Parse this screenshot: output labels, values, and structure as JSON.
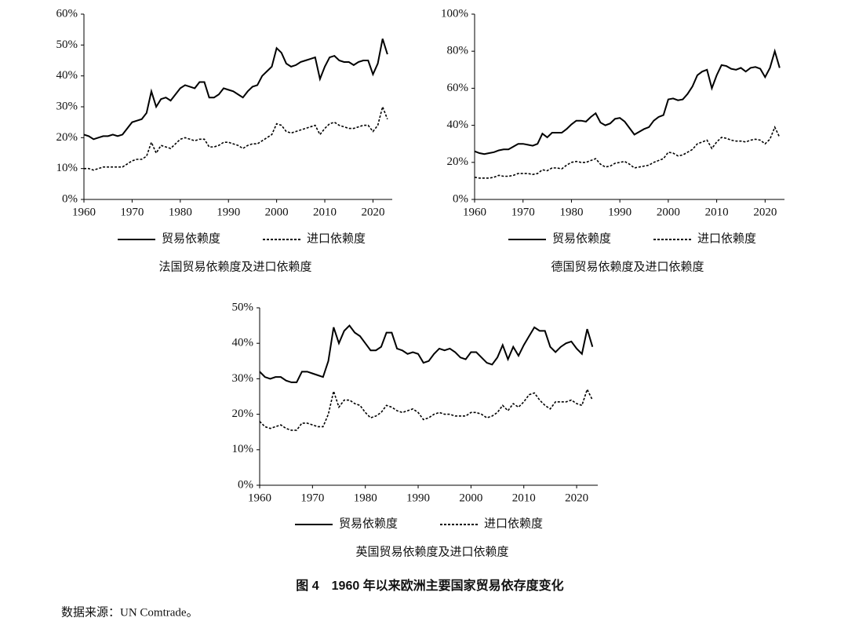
{
  "chart_data": [
    {
      "type": "line",
      "title": "法国贸易依赖度及进口依赖度",
      "x": [
        1960,
        1961,
        1962,
        1963,
        1964,
        1965,
        1966,
        1967,
        1968,
        1969,
        1970,
        1971,
        1972,
        1973,
        1974,
        1975,
        1976,
        1977,
        1978,
        1979,
        1980,
        1981,
        1982,
        1983,
        1984,
        1985,
        1986,
        1987,
        1988,
        1989,
        1990,
        1991,
        1992,
        1993,
        1994,
        1995,
        1996,
        1997,
        1998,
        1999,
        2000,
        2001,
        2002,
        2003,
        2004,
        2005,
        2006,
        2007,
        2008,
        2009,
        2010,
        2011,
        2012,
        2013,
        2014,
        2015,
        2016,
        2017,
        2018,
        2019,
        2020,
        2021,
        2022,
        2023
      ],
      "series": [
        {
          "name": "贸易依赖度",
          "color": "#000000",
          "line_style": "solid",
          "values": [
            21,
            20.5,
            19.5,
            20,
            20.5,
            20.5,
            21,
            20.5,
            21,
            23,
            25,
            25.5,
            26,
            28,
            35,
            30,
            32.5,
            33,
            32,
            34,
            36,
            37,
            36.5,
            36,
            38,
            38,
            33,
            33,
            34,
            36,
            35.5,
            35,
            34,
            33,
            35,
            36.5,
            37,
            40,
            41.5,
            43,
            49,
            47.5,
            44,
            43,
            43.5,
            44.5,
            45,
            45.5,
            46,
            39,
            43,
            46,
            46.5,
            45,
            44.5,
            44.5,
            43.5,
            44.5,
            45,
            45,
            40.5,
            44,
            52,
            47
          ]
        },
        {
          "name": "进口依赖度",
          "color": "#000000",
          "line_style": "dashed",
          "values": [
            10,
            10,
            9.5,
            10,
            10.5,
            10.5,
            10.5,
            10.5,
            10.5,
            11.5,
            12.5,
            13,
            13,
            14,
            18.5,
            15,
            17.5,
            17,
            16.5,
            18,
            19.5,
            20,
            19.5,
            19,
            19.5,
            19.5,
            17,
            17,
            17.5,
            18.5,
            18.5,
            18,
            17.5,
            16.5,
            17.5,
            18,
            18,
            19,
            20,
            21,
            24.5,
            24,
            22,
            21.5,
            22,
            22.5,
            23,
            23.5,
            24,
            21,
            23,
            24.5,
            25,
            24,
            23.5,
            23,
            23,
            23.5,
            24,
            24,
            22,
            24,
            30,
            26
          ]
        }
      ],
      "xlim": [
        1960,
        2024
      ],
      "xticks": [
        1960,
        1970,
        1980,
        1990,
        2000,
        2010,
        2020
      ],
      "ylim": [
        0,
        60
      ],
      "yticks": [
        {
          "value": 0,
          "label": "0%"
        },
        {
          "value": 10,
          "label": "10%"
        },
        {
          "value": 20,
          "label": "20%"
        },
        {
          "value": 30,
          "label": "30%"
        },
        {
          "value": 40,
          "label": "40%"
        },
        {
          "value": 50,
          "label": "50%"
        },
        {
          "value": 60,
          "label": "60%"
        }
      ],
      "grid": false
    },
    {
      "type": "line",
      "title": "德国贸易依赖度及进口依赖度",
      "x": [
        1960,
        1961,
        1962,
        1963,
        1964,
        1965,
        1966,
        1967,
        1968,
        1969,
        1970,
        1971,
        1972,
        1973,
        1974,
        1975,
        1976,
        1977,
        1978,
        1979,
        1980,
        1981,
        1982,
        1983,
        1984,
        1985,
        1986,
        1987,
        1988,
        1989,
        1990,
        1991,
        1992,
        1993,
        1994,
        1995,
        1996,
        1997,
        1998,
        1999,
        2000,
        2001,
        2002,
        2003,
        2004,
        2005,
        2006,
        2007,
        2008,
        2009,
        2010,
        2011,
        2012,
        2013,
        2014,
        2015,
        2016,
        2017,
        2018,
        2019,
        2020,
        2021,
        2022,
        2023
      ],
      "series": [
        {
          "name": "贸易依赖度",
          "color": "#000000",
          "line_style": "solid",
          "values": [
            26,
            25,
            24.5,
            25,
            25.5,
            26.5,
            27,
            27,
            28.5,
            30,
            30,
            29.5,
            29,
            30,
            35.5,
            33.5,
            36,
            36,
            36,
            38,
            40.5,
            42.5,
            42.5,
            42,
            44.5,
            46.5,
            41.5,
            40,
            41,
            43.5,
            44,
            42,
            38.5,
            35,
            36.5,
            38,
            39,
            42.5,
            44.5,
            45.5,
            54,
            54.5,
            53.5,
            54,
            57,
            61,
            67,
            69,
            70,
            60,
            67,
            72.5,
            72,
            70.5,
            70,
            71,
            69,
            71,
            71.5,
            70.5,
            66,
            71,
            80,
            71
          ]
        },
        {
          "name": "进口依赖度",
          "color": "#000000",
          "line_style": "dashed",
          "values": [
            12,
            11.5,
            11.5,
            11.5,
            12,
            13,
            12.5,
            12.5,
            13,
            14,
            14,
            14,
            13.5,
            14,
            16,
            15.5,
            17,
            17,
            16.5,
            18.5,
            20,
            20.5,
            20,
            20,
            21,
            22,
            19,
            17.5,
            18,
            19.5,
            20,
            20.5,
            19,
            17,
            17.5,
            18,
            18.5,
            20,
            21,
            22,
            25.5,
            25,
            23.5,
            24,
            25.5,
            27,
            30,
            31,
            32,
            27.5,
            31,
            33.5,
            33,
            32,
            31.5,
            31.5,
            31,
            32,
            32.5,
            32,
            30,
            32.5,
            39,
            33.5
          ]
        }
      ],
      "xlim": [
        1960,
        2024
      ],
      "xticks": [
        1960,
        1970,
        1980,
        1990,
        2000,
        2010,
        2020
      ],
      "ylim": [
        0,
        100
      ],
      "yticks": [
        {
          "value": 0,
          "label": "0%"
        },
        {
          "value": 20,
          "label": "20%"
        },
        {
          "value": 40,
          "label": "40%"
        },
        {
          "value": 60,
          "label": "60%"
        },
        {
          "value": 80,
          "label": "80%"
        },
        {
          "value": 100,
          "label": "100%"
        }
      ],
      "grid": false
    },
    {
      "type": "line",
      "title": "英国贸易依赖度及进口依赖度",
      "x": [
        1960,
        1961,
        1962,
        1963,
        1964,
        1965,
        1966,
        1967,
        1968,
        1969,
        1970,
        1971,
        1972,
        1973,
        1974,
        1975,
        1976,
        1977,
        1978,
        1979,
        1980,
        1981,
        1982,
        1983,
        1984,
        1985,
        1986,
        1987,
        1988,
        1989,
        1990,
        1991,
        1992,
        1993,
        1994,
        1995,
        1996,
        1997,
        1998,
        1999,
        2000,
        2001,
        2002,
        2003,
        2004,
        2005,
        2006,
        2007,
        2008,
        2009,
        2010,
        2011,
        2012,
        2013,
        2014,
        2015,
        2016,
        2017,
        2018,
        2019,
        2020,
        2021,
        2022,
        2023
      ],
      "series": [
        {
          "name": "贸易依赖度",
          "color": "#000000",
          "line_style": "solid",
          "values": [
            32,
            30.5,
            30,
            30.5,
            30.5,
            29.5,
            29,
            29,
            32,
            32,
            31.5,
            31,
            30.5,
            35,
            44.5,
            40,
            43.5,
            45,
            43,
            42,
            40,
            38,
            38,
            39,
            43,
            43,
            38.5,
            38,
            37,
            37.5,
            37,
            34.5,
            35,
            37,
            38.5,
            38,
            38.5,
            37.5,
            36,
            35.5,
            37.5,
            37.5,
            36,
            34.5,
            34,
            36,
            39.5,
            35.5,
            39,
            36.5,
            39.5,
            42,
            44.5,
            43.5,
            43.5,
            39,
            37.5,
            39,
            40,
            40.5,
            38.5,
            37,
            44,
            39
          ]
        },
        {
          "name": "进口依赖度",
          "color": "#000000",
          "line_style": "dashed",
          "values": [
            18,
            16.5,
            16,
            16.5,
            17,
            16,
            15.5,
            15.5,
            17.5,
            17.5,
            17,
            16.5,
            16.5,
            20,
            26.5,
            22,
            24,
            24,
            23,
            22.5,
            20.5,
            19,
            19.5,
            20.5,
            22.5,
            22,
            21,
            20.5,
            21,
            21.5,
            20.5,
            18.5,
            19,
            20,
            20.5,
            20,
            20,
            19.5,
            19.5,
            19.5,
            20.5,
            20.5,
            20,
            19,
            19.5,
            20.5,
            22.5,
            21,
            23,
            22,
            23.5,
            25.5,
            26,
            24,
            22.5,
            21.5,
            23.5,
            23.5,
            23.5,
            24,
            23,
            22.5,
            27,
            24
          ]
        }
      ],
      "xlim": [
        1960,
        2024
      ],
      "xticks": [
        1960,
        1970,
        1980,
        1990,
        2000,
        2010,
        2020
      ],
      "ylim": [
        0,
        50
      ],
      "yticks": [
        {
          "value": 0,
          "label": "0%"
        },
        {
          "value": 10,
          "label": "10%"
        },
        {
          "value": 20,
          "label": "20%"
        },
        {
          "value": 30,
          "label": "30%"
        },
        {
          "value": 40,
          "label": "40%"
        },
        {
          "value": 50,
          "label": "50%"
        }
      ],
      "grid": false
    }
  ],
  "figure_title": "图 4　1960 年以来欧洲主要国家贸易依存度变化",
  "source": "数据来源：UN Comtrade。"
}
